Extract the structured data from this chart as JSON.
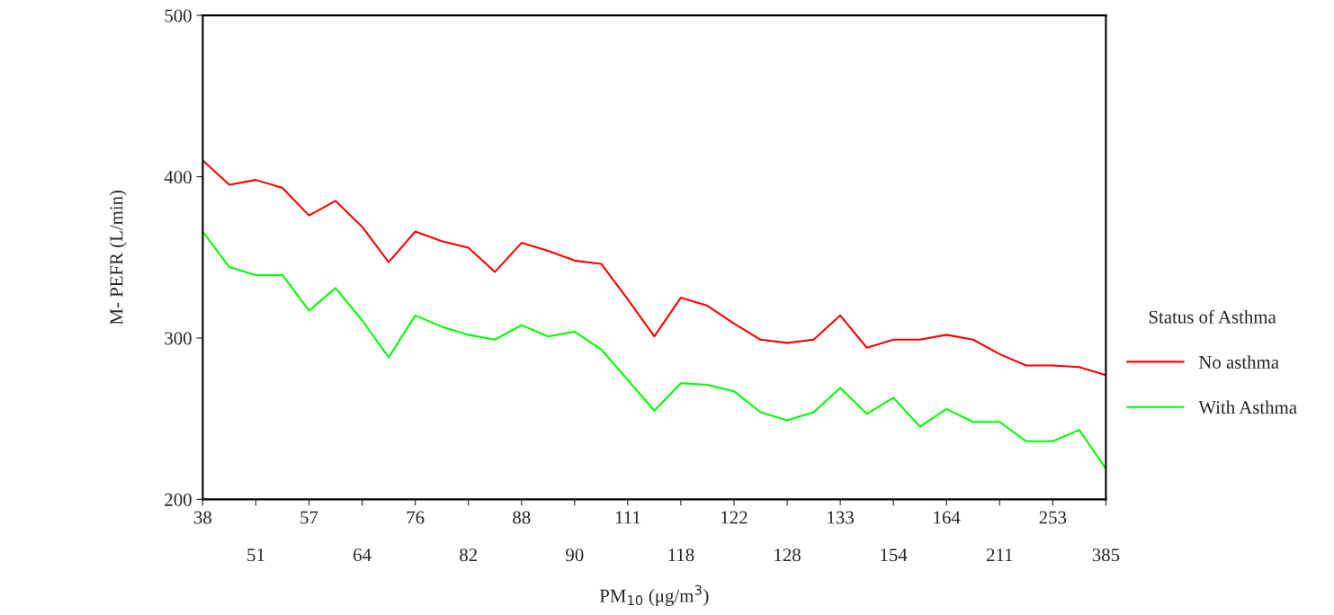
{
  "chart_data": {
    "type": "line",
    "xlabel": "PM$_{10}$ (μg/m$^{3}$)",
    "ylabel": "M- PEFR (L/min)",
    "legend_title": "Status of Asthma",
    "categories": [
      "38",
      null,
      "51",
      null,
      "57",
      null,
      "64",
      null,
      "76",
      null,
      "82",
      null,
      "88",
      null,
      "90",
      null,
      "111",
      null,
      "118",
      null,
      "122",
      null,
      "128",
      null,
      "133",
      null,
      "154",
      null,
      "164",
      null,
      "211",
      null,
      "253",
      null,
      "385"
    ],
    "series": [
      {
        "name": "No asthma",
        "color": "#ff0000",
        "values": [
          410,
          395,
          398,
          393,
          376,
          385,
          369,
          347,
          366,
          360,
          356,
          341,
          359,
          354,
          348,
          346,
          324,
          301,
          325,
          320,
          309,
          299,
          297,
          299,
          314,
          294,
          299,
          299,
          302,
          299,
          290,
          283,
          283,
          282,
          277
        ]
      },
      {
        "name": "With Asthma",
        "color": "#00ff00",
        "values": [
          366,
          344,
          339,
          339,
          317,
          331,
          311,
          288,
          314,
          307,
          302,
          299,
          308,
          301,
          304,
          293,
          274,
          255,
          272,
          271,
          267,
          254,
          249,
          254,
          269,
          253,
          263,
          245,
          256,
          248,
          248,
          236,
          236,
          243,
          219
        ]
      }
    ],
    "ylim": [
      200,
      500
    ],
    "yticks": [
      200,
      300,
      400,
      500
    ],
    "grid": false,
    "legend": "right",
    "marker": "none",
    "line_style": "solid"
  }
}
